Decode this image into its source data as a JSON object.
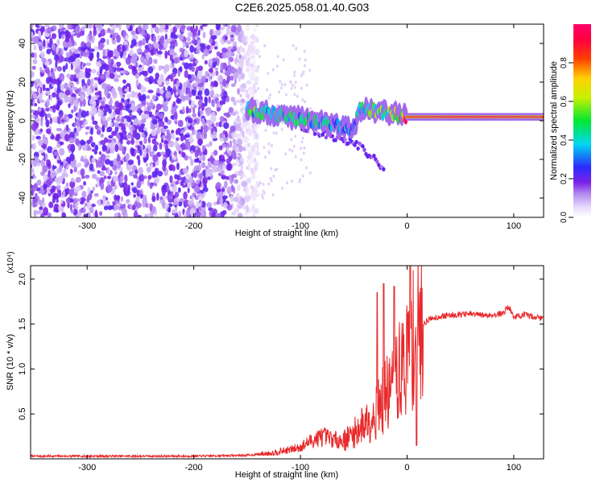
{
  "title": "C2E6.2025.058.01.40.G03",
  "chart_data": [
    {
      "type": "heatmap",
      "xlabel": "Height of straight line (km)",
      "ylabel": "Frequency (Hz)",
      "xlim": [
        -353,
        128
      ],
      "ylim": [
        -50,
        50
      ],
      "x_ticks": [
        -300,
        -200,
        -100,
        0,
        100
      ],
      "x_tick_labels": [
        "-300",
        "-200",
        "-100",
        "0",
        "100"
      ],
      "y_ticks": [
        -40,
        -20,
        0,
        20,
        40
      ],
      "y_tick_labels": [
        "-40",
        "-20",
        "0",
        "20",
        "40"
      ],
      "colorbar": {
        "label": "Normalized spectral amplitude",
        "range": [
          0,
          1
        ],
        "ticks": [
          0.0,
          0.2,
          0.4,
          0.6,
          0.8
        ],
        "tick_labels": [
          "0.0",
          "0.2",
          "0.4",
          "0.6",
          "0.8"
        ],
        "colormap": "rainbow (white-violet-blue-cyan-green-yellow-red-magenta)"
      },
      "features": {
        "noise_region_x": [
          -353,
          -140
        ],
        "signal_track": [
          {
            "x": -150,
            "f": 6,
            "a": 0.5
          },
          {
            "x": -130,
            "f": 4,
            "a": 0.45
          },
          {
            "x": -110,
            "f": 2,
            "a": 0.45
          },
          {
            "x": -90,
            "f": 0,
            "a": 0.45
          },
          {
            "x": -70,
            "f": -2,
            "a": 0.4
          },
          {
            "x": -50,
            "f": -5,
            "a": 0.35
          },
          {
            "x": -45,
            "f": 6,
            "a": 0.5
          },
          {
            "x": -30,
            "f": 5,
            "a": 0.55
          },
          {
            "x": -15,
            "f": 4,
            "a": 0.6
          },
          {
            "x": 0,
            "f": 2,
            "a": 0.85
          },
          {
            "x": 40,
            "f": 2,
            "a": 0.9
          },
          {
            "x": 80,
            "f": 2,
            "a": 0.9
          },
          {
            "x": 128,
            "f": 2,
            "a": 0.85
          }
        ],
        "lower_branch": [
          {
            "x": -100,
            "f": -3
          },
          {
            "x": -70,
            "f": -8
          },
          {
            "x": -45,
            "f": -13
          },
          {
            "x": -30,
            "f": -20
          },
          {
            "x": -22,
            "f": -27
          }
        ]
      },
      "background_color": "#ffffff"
    },
    {
      "type": "line",
      "xlabel": "Height of straight line (km)",
      "ylabel": "SNR (10 * v/v)",
      "y_multiplier": "(x10⁴)",
      "xlim": [
        -353,
        128
      ],
      "ylim": [
        0,
        21500
      ],
      "x_ticks": [
        -300,
        -200,
        -100,
        0,
        100
      ],
      "x_tick_labels": [
        "-300",
        "-200",
        "-100",
        "0",
        "100"
      ],
      "y_ticks": [
        5000,
        10000,
        15000,
        20000
      ],
      "y_tick_labels": [
        "0.5",
        "1.0",
        "1.5",
        "2.0"
      ],
      "series": [
        {
          "color": "#e8282a",
          "x": [
            -353,
            -300,
            -250,
            -200,
            -150,
            -130,
            -110,
            -100,
            -90,
            -80,
            -70,
            -60,
            -50,
            -40,
            -30,
            -25,
            -20,
            -15,
            -10,
            -5,
            0,
            5,
            10,
            15,
            20,
            25,
            30,
            40,
            50,
            60,
            70,
            80,
            90,
            95,
            100,
            110,
            120,
            128
          ],
          "y": [
            300,
            300,
            300,
            300,
            400,
            600,
            1000,
            1300,
            2000,
            2500,
            2200,
            2000,
            2800,
            4000,
            5000,
            6000,
            7000,
            8000,
            9000,
            10000,
            11500,
            13000,
            14000,
            15000,
            15500,
            15700,
            15800,
            16000,
            16100,
            16100,
            16000,
            16000,
            16200,
            17000,
            15800,
            16000,
            15800,
            15600
          ]
        }
      ],
      "spikes": [
        {
          "x": -28,
          "y": 18500
        },
        {
          "x": -22,
          "y": 19500
        },
        {
          "x": -12,
          "y": 19200
        },
        {
          "x": 3,
          "y": 21500
        },
        {
          "x": 9,
          "y": 1500
        }
      ]
    }
  ]
}
